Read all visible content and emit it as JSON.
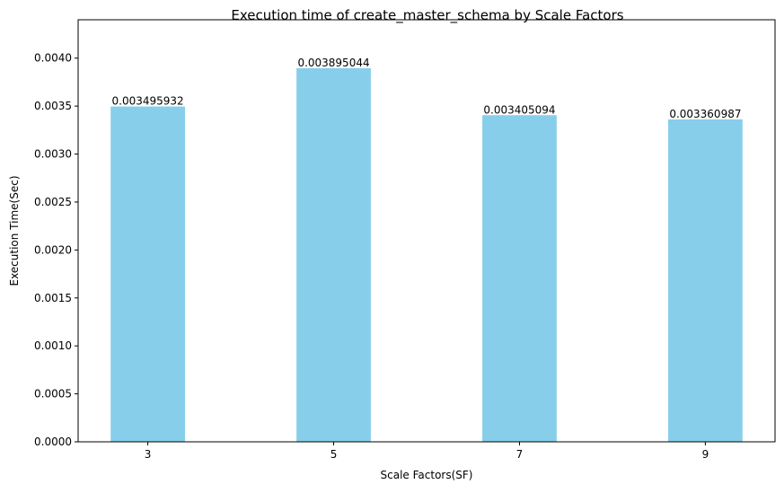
{
  "chart_data": {
    "type": "bar",
    "title": "Execution time of create_master_schema by Scale Factors",
    "xlabel": "Scale Factors(SF)",
    "ylabel": "Execution Time(Sec)",
    "categories": [
      "3",
      "5",
      "7",
      "9"
    ],
    "values": [
      0.003495932,
      0.003895044,
      0.003405094,
      0.003360987
    ],
    "value_labels": [
      "0.003495932",
      "0.003895044",
      "0.003405094",
      "0.003360987"
    ],
    "ylim": [
      0,
      0.0044
    ],
    "yticks": [
      0,
      0.0005,
      0.001,
      0.0015,
      0.002,
      0.0025,
      0.003,
      0.0035,
      0.004
    ],
    "ytick_labels": [
      "0.0000",
      "0.0005",
      "0.0010",
      "0.0015",
      "0.0020",
      "0.0025",
      "0.0030",
      "0.0035",
      "0.0040"
    ],
    "bar_color": "#87ceeb",
    "grid": false,
    "legend": false
  }
}
